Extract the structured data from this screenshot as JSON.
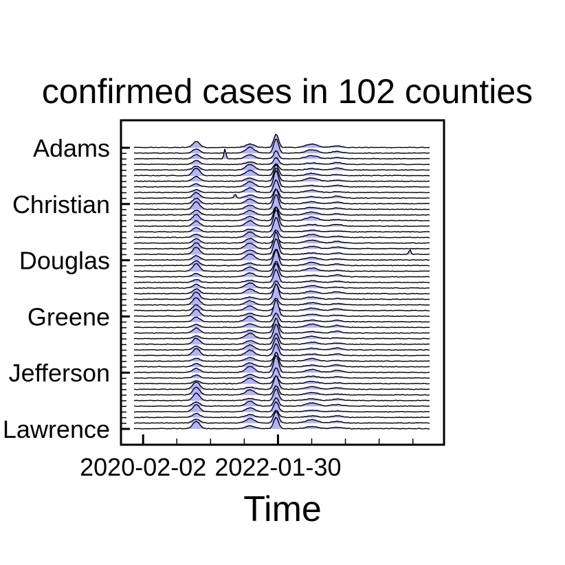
{
  "chart_data": {
    "type": "ridgeline",
    "title": "confirmed cases in 102 counties",
    "xlabel": "Time",
    "ylabel": "",
    "x_tick_labels": [
      "2020-02-02",
      "2022-01-30"
    ],
    "x_tick_values": [
      "2020-02-02",
      "2022-01-30"
    ],
    "x_range": [
      "2019-12-15",
      "2024-05-01"
    ],
    "y_tick_labels": [
      "Adams",
      "Christian",
      "Douglas",
      "Greene",
      "Jefferson",
      "Lawrence"
    ],
    "visible_ridges": 51,
    "series_count": 102,
    "fill_color": "#b3b3ff",
    "line_color": "#000000",
    "peaks": [
      {
        "date": "2020-11-15",
        "relative_height": 0.45
      },
      {
        "date": "2021-09-01",
        "relative_height": 0.35
      },
      {
        "date": "2022-01-20",
        "relative_height": 1.0
      },
      {
        "date": "2022-08-01",
        "relative_height": 0.2
      },
      {
        "date": "2022-12-15",
        "relative_height": 0.12
      }
    ],
    "grid": false,
    "legend": "none"
  }
}
